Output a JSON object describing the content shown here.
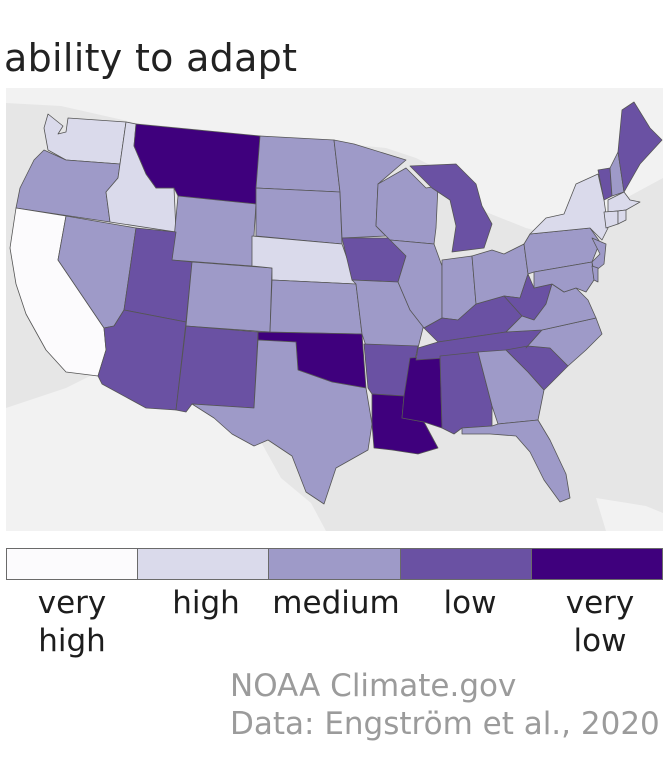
{
  "title": "ability to adapt",
  "legend": [
    {
      "label_line1": "very",
      "label_line2": "high",
      "color": "#fcfbfd"
    },
    {
      "label_line1": "high",
      "label_line2": "",
      "color": "#dadaeb"
    },
    {
      "label_line1": "medium",
      "label_line2": "",
      "color": "#9e9ac8"
    },
    {
      "label_line1": "low",
      "label_line2": "",
      "color": "#6a51a3"
    },
    {
      "label_line1": "very",
      "label_line2": "low",
      "color": "#3f007d"
    }
  ],
  "credits": {
    "line1": "NOAA Climate.gov",
    "line2": "Data: Engström et al., 2020"
  },
  "colors": {
    "background_land": "#f2f2f2",
    "water": "#e6e6e6",
    "state_border": "#555555"
  },
  "states": [
    {
      "name": "Washington",
      "level": "high"
    },
    {
      "name": "Oregon",
      "level": "medium"
    },
    {
      "name": "California",
      "level": "very high"
    },
    {
      "name": "Idaho",
      "level": "high"
    },
    {
      "name": "Nevada",
      "level": "medium"
    },
    {
      "name": "Montana",
      "level": "very low"
    },
    {
      "name": "Wyoming",
      "level": "medium"
    },
    {
      "name": "Utah",
      "level": "low"
    },
    {
      "name": "Arizona",
      "level": "low"
    },
    {
      "name": "Colorado",
      "level": "medium"
    },
    {
      "name": "New Mexico",
      "level": "low"
    },
    {
      "name": "North Dakota",
      "level": "medium"
    },
    {
      "name": "South Dakota",
      "level": "medium"
    },
    {
      "name": "Nebraska",
      "level": "high"
    },
    {
      "name": "Kansas",
      "level": "medium"
    },
    {
      "name": "Oklahoma",
      "level": "very low"
    },
    {
      "name": "Texas",
      "level": "medium"
    },
    {
      "name": "Minnesota",
      "level": "medium"
    },
    {
      "name": "Iowa",
      "level": "low"
    },
    {
      "name": "Missouri",
      "level": "medium"
    },
    {
      "name": "Arkansas",
      "level": "low"
    },
    {
      "name": "Louisiana",
      "level": "very low"
    },
    {
      "name": "Wisconsin",
      "level": "medium"
    },
    {
      "name": "Illinois",
      "level": "medium"
    },
    {
      "name": "Mississippi",
      "level": "very low"
    },
    {
      "name": "Michigan",
      "level": "low"
    },
    {
      "name": "Indiana",
      "level": "medium"
    },
    {
      "name": "Kentucky",
      "level": "low"
    },
    {
      "name": "Tennessee",
      "level": "low"
    },
    {
      "name": "Alabama",
      "level": "low"
    },
    {
      "name": "Ohio",
      "level": "medium"
    },
    {
      "name": "West Virginia",
      "level": "low"
    },
    {
      "name": "Georgia",
      "level": "medium"
    },
    {
      "name": "Florida",
      "level": "medium"
    },
    {
      "name": "South Carolina",
      "level": "low"
    },
    {
      "name": "North Carolina",
      "level": "medium"
    },
    {
      "name": "Virginia",
      "level": "medium"
    },
    {
      "name": "Pennsylvania",
      "level": "medium"
    },
    {
      "name": "New York",
      "level": "high"
    },
    {
      "name": "New Jersey",
      "level": "medium"
    },
    {
      "name": "Maryland",
      "level": "medium"
    },
    {
      "name": "Delaware",
      "level": "medium"
    },
    {
      "name": "Vermont",
      "level": "low"
    },
    {
      "name": "New Hampshire",
      "level": "medium"
    },
    {
      "name": "Maine",
      "level": "low"
    },
    {
      "name": "Massachusetts",
      "level": "high"
    },
    {
      "name": "Connecticut",
      "level": "high"
    },
    {
      "name": "Rhode Island",
      "level": "high"
    }
  ]
}
